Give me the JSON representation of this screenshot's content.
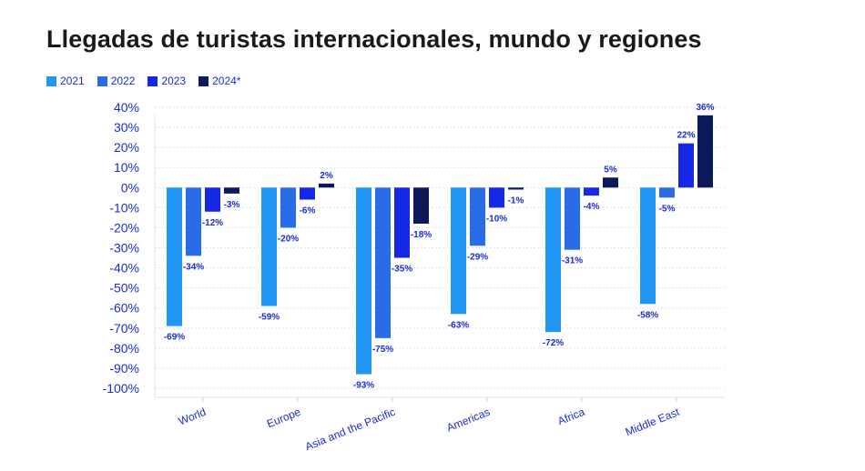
{
  "chart_data": {
    "type": "bar",
    "title": "Llegadas de turistas internacionales, mundo y regiones",
    "xlabel": "",
    "ylabel": "",
    "ylim": [
      -100,
      40
    ],
    "yticks": [
      40,
      30,
      20,
      10,
      0,
      -10,
      -20,
      -30,
      -40,
      -50,
      -60,
      -70,
      -80,
      -90,
      -100
    ],
    "ytick_suffix": "%",
    "categories": [
      "World",
      "Europe",
      "Asia and the Pacific",
      "Americas",
      "Africa",
      "Middle East"
    ],
    "series": [
      {
        "name": "2021",
        "color": "#2196f3",
        "values": [
          -69,
          -59,
          -93,
          -63,
          -72,
          -58
        ]
      },
      {
        "name": "2022",
        "color": "#2a6ce8",
        "values": [
          -34,
          -20,
          -75,
          -29,
          -31,
          -5
        ]
      },
      {
        "name": "2023",
        "color": "#1428e6",
        "values": [
          -12,
          -6,
          -35,
          -10,
          -4,
          22
        ]
      },
      {
        "name": "2024*",
        "color": "#0c1a5c",
        "values": [
          -3,
          2,
          -18,
          -1,
          5,
          36
        ]
      }
    ],
    "legend_position": "top-left",
    "grid": true
  }
}
